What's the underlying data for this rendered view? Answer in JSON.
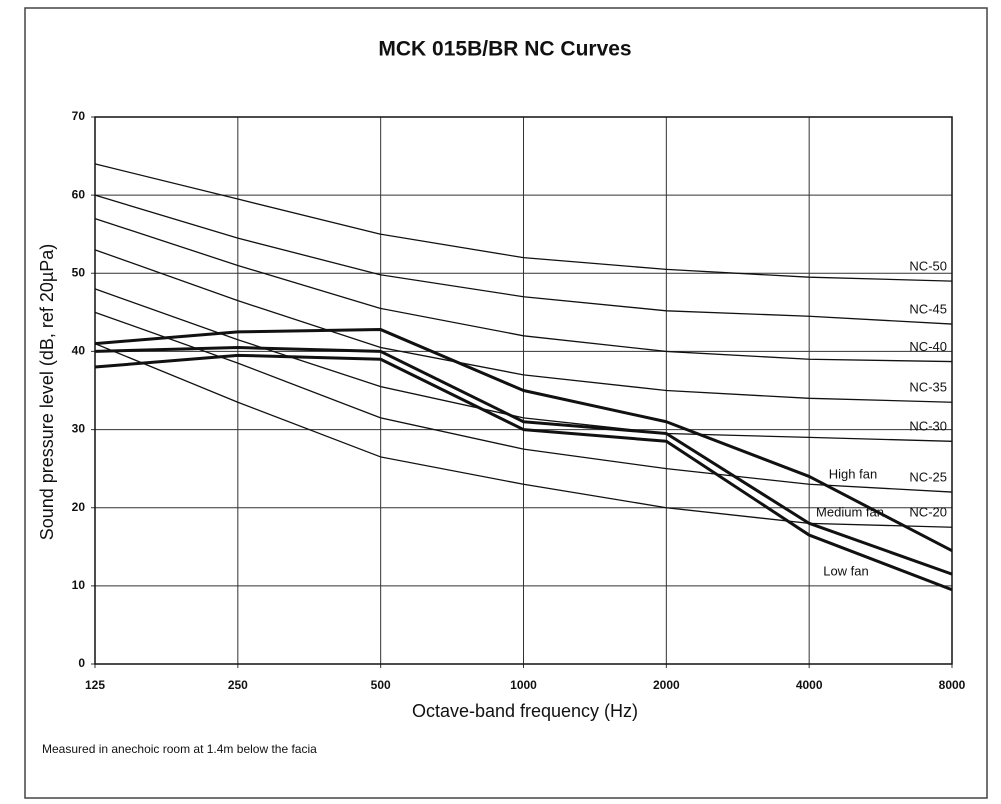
{
  "chart_data": {
    "type": "line",
    "title": "MCK 015B/BR NC Curves",
    "xlabel": "Octave-band frequency (Hz)",
    "ylabel": "Sound pressure level (dB, ref 20µPa)",
    "note": "Measured in anechoic room at 1.4m below the facia",
    "categories": [
      "125",
      "250",
      "500",
      "1000",
      "2000",
      "4000",
      "8000"
    ],
    "ylim": [
      0,
      70
    ],
    "yticks": [
      0,
      10,
      20,
      30,
      40,
      50,
      60,
      70
    ],
    "grid": true,
    "series": [
      {
        "name": "NC-50",
        "color": "#111",
        "values": [
          64,
          59.5,
          55,
          52,
          50.5,
          49.5,
          49
        ]
      },
      {
        "name": "NC-45",
        "color": "#111",
        "values": [
          60,
          54.5,
          49.8,
          47,
          45.2,
          44.5,
          43.5
        ]
      },
      {
        "name": "NC-40",
        "color": "#111",
        "values": [
          57,
          51,
          45.5,
          42,
          40,
          39,
          38.7
        ]
      },
      {
        "name": "NC-35",
        "color": "#111",
        "values": [
          53,
          46.5,
          40.5,
          37,
          35,
          34,
          33.5
        ]
      },
      {
        "name": "NC-30",
        "color": "#111",
        "values": [
          48,
          41.5,
          35.5,
          31.5,
          29.5,
          29,
          28.5
        ]
      },
      {
        "name": "NC-25",
        "color": "#111",
        "values": [
          45,
          38.5,
          31.5,
          27.5,
          25,
          23,
          22
        ]
      },
      {
        "name": "NC-20",
        "color": "#111",
        "values": [
          41,
          33.5,
          26.5,
          23,
          20,
          18,
          17.5
        ]
      },
      {
        "name": "High fan",
        "color": "#111",
        "values": [
          41,
          42.5,
          42.8,
          35,
          31,
          24,
          14.5
        ]
      },
      {
        "name": "Medium fan",
        "color": "#111",
        "values": [
          40,
          40.5,
          40,
          31,
          29.5,
          18,
          11.5
        ]
      },
      {
        "name": "Low fan",
        "color": "#111",
        "values": [
          38,
          39.5,
          39,
          30,
          28.5,
          16.5,
          9.5
        ]
      }
    ]
  }
}
